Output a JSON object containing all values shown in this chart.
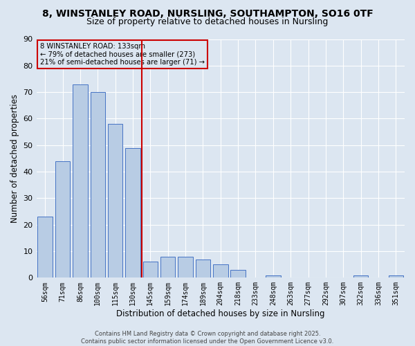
{
  "title_line1": "8, WINSTANLEY ROAD, NURSLING, SOUTHAMPTON, SO16 0TF",
  "title_line2": "Size of property relative to detached houses in Nursling",
  "xlabel": "Distribution of detached houses by size in Nursling",
  "ylabel": "Number of detached properties",
  "bar_labels": [
    "56sqm",
    "71sqm",
    "86sqm",
    "100sqm",
    "115sqm",
    "130sqm",
    "145sqm",
    "159sqm",
    "174sqm",
    "189sqm",
    "204sqm",
    "218sqm",
    "233sqm",
    "248sqm",
    "263sqm",
    "277sqm",
    "292sqm",
    "307sqm",
    "322sqm",
    "336sqm",
    "351sqm"
  ],
  "bar_values": [
    23,
    44,
    73,
    70,
    58,
    49,
    6,
    8,
    8,
    7,
    5,
    3,
    0,
    1,
    0,
    0,
    0,
    0,
    1,
    0,
    1
  ],
  "bar_color": "#b8cce4",
  "bar_edge_color": "#4472c4",
  "annotation_line1": "8 WINSTANLEY ROAD: 133sqm",
  "annotation_line2": "← 79% of detached houses are smaller (273)",
  "annotation_line3": "21% of semi-detached houses are larger (71) →",
  "vline_color": "#cc0000",
  "box_color": "#cc0000",
  "background_color": "#dce6f1",
  "grid_color": "#ffffff",
  "ylim": [
    0,
    90
  ],
  "yticks": [
    0,
    10,
    20,
    30,
    40,
    50,
    60,
    70,
    80,
    90
  ],
  "footer_text": "Contains HM Land Registry data © Crown copyright and database right 2025.\nContains public sector information licensed under the Open Government Licence v3.0.",
  "title_fontsize": 10,
  "subtitle_fontsize": 9,
  "tick_fontsize": 7,
  "label_fontsize": 8.5
}
